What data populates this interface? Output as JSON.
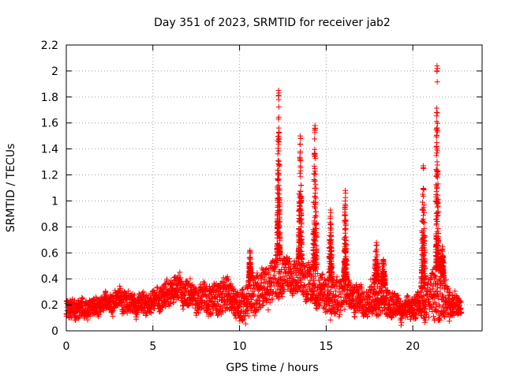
{
  "chart_data": {
    "type": "scatter",
    "title": "Day 351 of 2023, SRMTID for receiver jab2",
    "xlabel": "GPS time / hours",
    "ylabel": "SRMTID / TECUs",
    "xlim": [
      0,
      24
    ],
    "ylim": [
      0,
      2.2
    ],
    "x_ticks": [
      0,
      5,
      10,
      15,
      20
    ],
    "x_tick_labels": [
      "0",
      "5",
      "10",
      "15",
      "20"
    ],
    "y_ticks": [
      0,
      0.2,
      0.4,
      0.6,
      0.8,
      1,
      1.2,
      1.4,
      1.6,
      1.8,
      2,
      2.2
    ],
    "y_tick_labels": [
      "0",
      "0.2",
      "0.4",
      "0.6",
      "0.8",
      "1",
      "1.2",
      "1.4",
      "1.6",
      "1.8",
      "2",
      "2.2"
    ],
    "grid": true,
    "marker": "+",
    "series_color": "#ff0000",
    "envelope": {
      "x": [
        0,
        0.5,
        1,
        1.5,
        2,
        2.5,
        3,
        3.5,
        4,
        4.5,
        5,
        5.5,
        6,
        6.5,
        7,
        7.5,
        8,
        8.5,
        9,
        9.5,
        10,
        10.5,
        11,
        11.5,
        12,
        12.5,
        13,
        13.5,
        14,
        14.5,
        15,
        15.5,
        16,
        16.5,
        17,
        17.5,
        18,
        18.5,
        19,
        19.5,
        20,
        20.5,
        21,
        21.5,
        22,
        22.5,
        22.8
      ],
      "low": [
        0.08,
        0.1,
        0.1,
        0.12,
        0.14,
        0.16,
        0.18,
        0.14,
        0.14,
        0.13,
        0.14,
        0.16,
        0.2,
        0.24,
        0.18,
        0.14,
        0.14,
        0.12,
        0.12,
        0.16,
        0.06,
        0.1,
        0.16,
        0.2,
        0.22,
        0.3,
        0.3,
        0.3,
        0.22,
        0.2,
        0.12,
        0.12,
        0.16,
        0.16,
        0.12,
        0.12,
        0.12,
        0.12,
        0.1,
        0.1,
        0.1,
        0.1,
        0.1,
        0.08,
        0.12,
        0.12,
        0.12
      ],
      "high": [
        0.22,
        0.26,
        0.24,
        0.24,
        0.26,
        0.28,
        0.32,
        0.3,
        0.28,
        0.28,
        0.3,
        0.34,
        0.4,
        0.44,
        0.38,
        0.34,
        0.36,
        0.34,
        0.42,
        0.38,
        0.28,
        0.4,
        0.46,
        0.48,
        0.56,
        0.6,
        0.54,
        0.56,
        0.5,
        0.46,
        0.4,
        0.38,
        0.42,
        0.38,
        0.32,
        0.34,
        0.38,
        0.34,
        0.28,
        0.24,
        0.26,
        0.3,
        0.42,
        0.5,
        0.34,
        0.26,
        0.24
      ]
    },
    "spikes": [
      {
        "x": 10.6,
        "peak": 0.62,
        "width": 0.06
      },
      {
        "x": 12.25,
        "peak": 1.85,
        "width": 0.09
      },
      {
        "x": 13.5,
        "peak": 1.5,
        "width": 0.1
      },
      {
        "x": 14.35,
        "peak": 1.58,
        "width": 0.11
      },
      {
        "x": 15.25,
        "peak": 0.93,
        "width": 0.09
      },
      {
        "x": 16.1,
        "peak": 1.08,
        "width": 0.08
      },
      {
        "x": 17.9,
        "peak": 0.68,
        "width": 0.14
      },
      {
        "x": 18.3,
        "peak": 0.55,
        "width": 0.1
      },
      {
        "x": 20.6,
        "peak": 1.27,
        "width": 0.12
      },
      {
        "x": 21.4,
        "peak": 2.04,
        "width": 0.08
      },
      {
        "x": 21.7,
        "peak": 0.65,
        "width": 0.1
      }
    ]
  }
}
